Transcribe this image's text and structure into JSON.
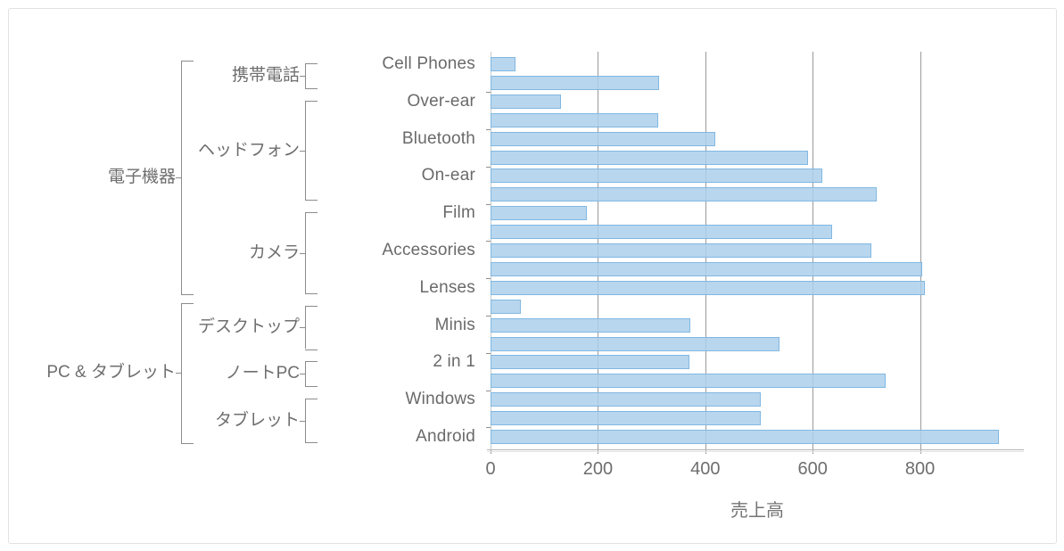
{
  "chart_data": {
    "type": "bar",
    "orientation": "horizontal",
    "title": "",
    "xlabel": "売上高",
    "x_ticks": [
      0,
      200,
      400,
      600,
      800
    ],
    "xlim": [
      0,
      990
    ],
    "grid": true,
    "legend": "none",
    "bar_color": "#abd0ec",
    "bar_border_color": "#7db7e0",
    "rows": [
      {
        "label": "Cell Phones",
        "value": 45
      },
      {
        "label": "",
        "value": 312
      },
      {
        "label": "Over-ear",
        "value": 130
      },
      {
        "label": "",
        "value": 310
      },
      {
        "label": "Bluetooth",
        "value": 417
      },
      {
        "label": "",
        "value": 589
      },
      {
        "label": "On-ear",
        "value": 617
      },
      {
        "label": "",
        "value": 717
      },
      {
        "label": "Film",
        "value": 178
      },
      {
        "label": "",
        "value": 635
      },
      {
        "label": "Accessories",
        "value": 707
      },
      {
        "label": "",
        "value": 803
      },
      {
        "label": "Lenses",
        "value": 807
      },
      {
        "label": "",
        "value": 55
      },
      {
        "label": "Minis",
        "value": 370
      },
      {
        "label": "",
        "value": 537
      },
      {
        "label": "2 in 1",
        "value": 368
      },
      {
        "label": "",
        "value": 734
      },
      {
        "label": "Windows",
        "value": 502
      },
      {
        "label": "",
        "value": 502
      },
      {
        "label": "Android",
        "value": 945
      }
    ],
    "mid_groups": [
      {
        "label": "携帯電話",
        "start": 0,
        "end": 1
      },
      {
        "label": "ヘッドフォン",
        "start": 2,
        "end": 7
      },
      {
        "label": "カメラ",
        "start": 8,
        "end": 12
      },
      {
        "label": "デスクトップ",
        "start": 13,
        "end": 15
      },
      {
        "label": "ノートPC",
        "start": 16,
        "end": 17
      },
      {
        "label": "タブレット",
        "start": 18,
        "end": 20
      }
    ],
    "outer_groups": [
      {
        "label": "電子機器",
        "start": 0,
        "end": 12
      },
      {
        "label": "PC & タブレット",
        "start": 13,
        "end": 20
      }
    ]
  }
}
